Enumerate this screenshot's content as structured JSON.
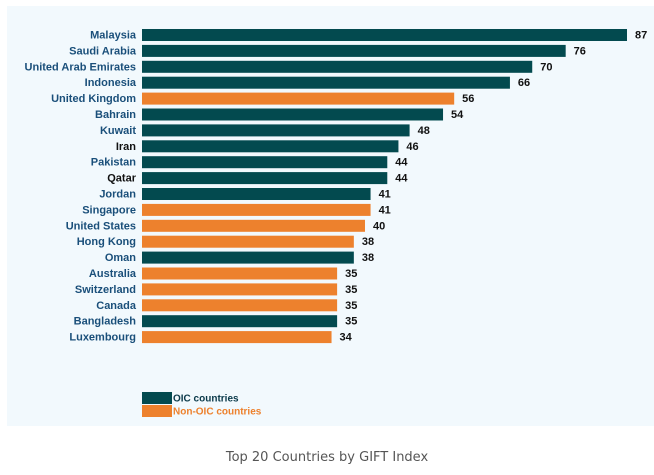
{
  "chart_data": {
    "type": "bar",
    "orientation": "horizontal",
    "title": "Top 20 Countries by GIFT Index",
    "xlabel": "",
    "ylabel": "",
    "xlim": [
      0,
      90
    ],
    "grid": false,
    "legend_position": "bottom-left",
    "categories": [
      "Malaysia",
      "Saudi Arabia",
      "United Arab Emirates",
      "Indonesia",
      "United Kingdom",
      "Bahrain",
      "Kuwait",
      "Iran",
      "Pakistan",
      "Qatar",
      "Jordan",
      "Singapore",
      "United States",
      "Hong Kong",
      "Oman",
      "Australia",
      "Switzerland",
      "Canada",
      "Bangladesh",
      "Luxembourg"
    ],
    "values": [
      87,
      76,
      70,
      66,
      56,
      54,
      48,
      46,
      44,
      44,
      41,
      41,
      40,
      38,
      38,
      35,
      35,
      35,
      35,
      34
    ],
    "groups": [
      "OIC",
      "OIC",
      "OIC",
      "OIC",
      "Non-OIC",
      "OIC",
      "OIC",
      "OIC",
      "OIC",
      "OIC",
      "OIC",
      "Non-OIC",
      "Non-OIC",
      "Non-OIC",
      "OIC",
      "Non-OIC",
      "Non-OIC",
      "Non-OIC",
      "OIC",
      "Non-OIC"
    ],
    "label_colors": [
      "#1a4f7a",
      "#1a4f7a",
      "#1a4f7a",
      "#1a4f7a",
      "#1a4f7a",
      "#1a4f7a",
      "#1a4f7a",
      "#111111",
      "#1a4f7a",
      "#111111",
      "#1a4f7a",
      "#1a4f7a",
      "#1a4f7a",
      "#1a4f7a",
      "#1a4f7a",
      "#1a4f7a",
      "#1a4f7a",
      "#1a4f7a",
      "#1a4f7a",
      "#1a4f7a"
    ],
    "series": [
      {
        "name": "OIC countries",
        "key": "OIC",
        "color": "#034a4f"
      },
      {
        "name": "Non-OIC countries",
        "key": "Non-OIC",
        "color": "#ed812d"
      }
    ]
  },
  "caption": "Top 20 Countries by GIFT Index"
}
